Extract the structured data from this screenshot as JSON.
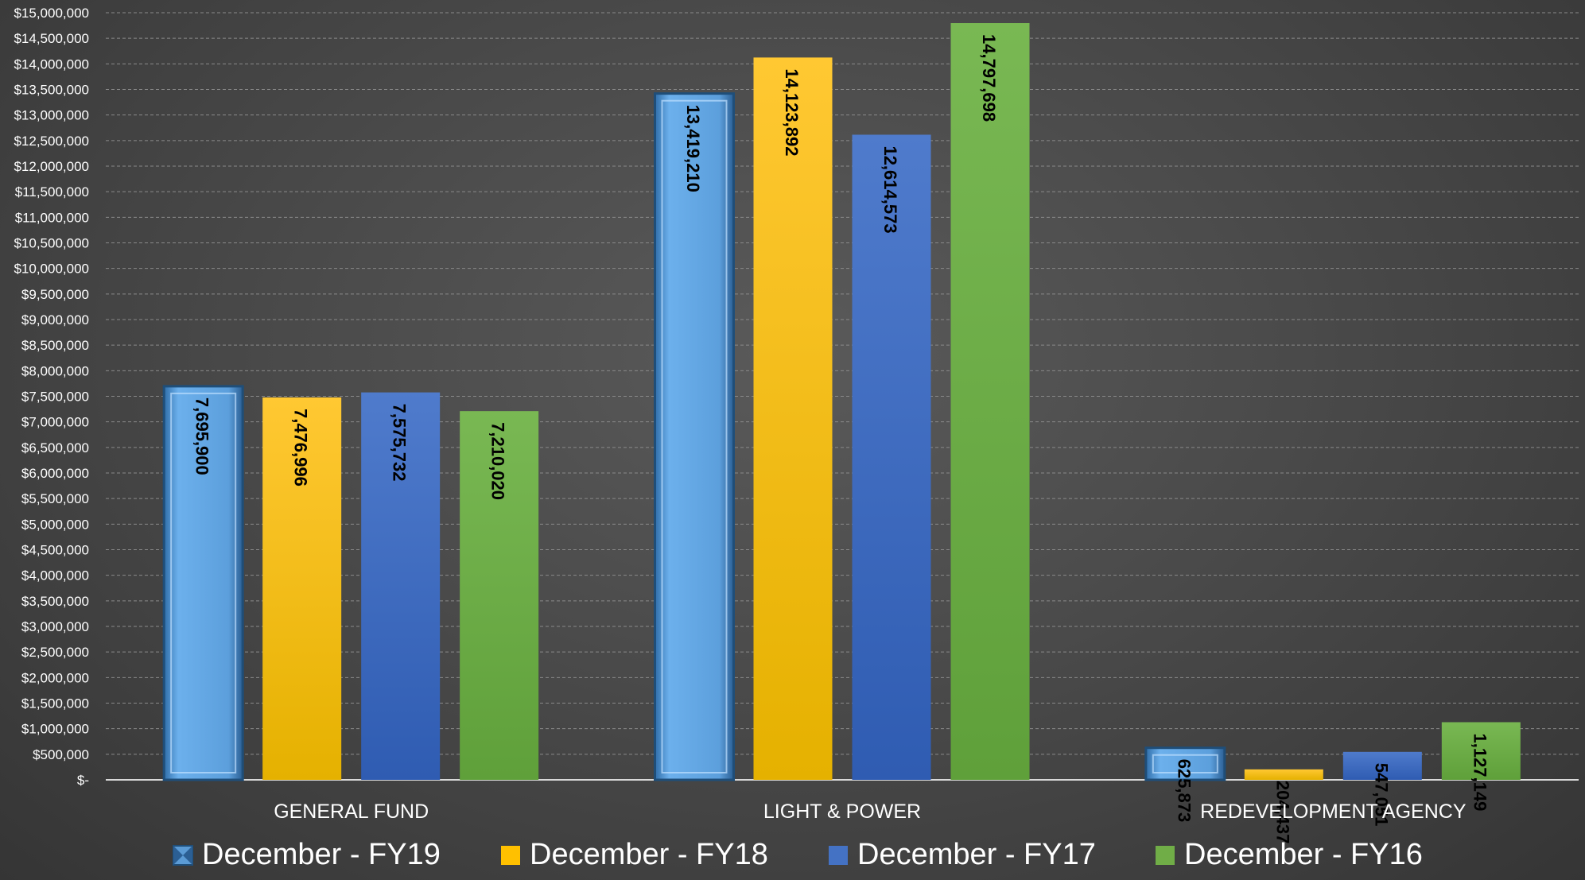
{
  "chart_data": {
    "type": "bar",
    "categories": [
      "GENERAL FUND",
      "LIGHT & POWER",
      "REDEVELOPMENT AGENCY"
    ],
    "series": [
      {
        "name": "December - FY19",
        "color": "#5b9bd5",
        "values": [
          7695900,
          13419210,
          625873
        ],
        "labels": [
          "7,695,900",
          "13,419,210",
          "625,873"
        ]
      },
      {
        "name": "December - FY18",
        "color": "#ffc000",
        "values": [
          7476996,
          14123892,
          204437
        ],
        "labels": [
          "7,476,996",
          "14,123,892",
          "204,437"
        ]
      },
      {
        "name": "December - FY17",
        "color": "#4472c4",
        "values": [
          7575732,
          12614573,
          547051
        ],
        "labels": [
          "7,575,732",
          "12,614,573",
          "547,051"
        ]
      },
      {
        "name": "December - FY16",
        "color": "#70ad47",
        "values": [
          7210020,
          14797698,
          1127149
        ],
        "labels": [
          "7,210,020",
          "14,797,698",
          "1,127,149"
        ]
      }
    ],
    "ylim": [
      0,
      15000000
    ],
    "ytick_step": 500000,
    "ytick_labels": [
      "$-",
      "$500,000",
      "$1,000,000",
      "$1,500,000",
      "$2,000,000",
      "$2,500,000",
      "$3,000,000",
      "$3,500,000",
      "$4,000,000",
      "$4,500,000",
      "$5,000,000",
      "$5,500,000",
      "$6,000,000",
      "$6,500,000",
      "$7,000,000",
      "$7,500,000",
      "$8,000,000",
      "$8,500,000",
      "$9,000,000",
      "$9,500,000",
      "$10,000,000",
      "$10,500,000",
      "$11,000,000",
      "$11,500,000",
      "$12,000,000",
      "$12,500,000",
      "$13,000,000",
      "$13,500,000",
      "$14,000,000",
      "$14,500,000",
      "$15,000,000"
    ],
    "grid": true,
    "legend_position": "bottom",
    "title": "",
    "xlabel": "",
    "ylabel": ""
  }
}
